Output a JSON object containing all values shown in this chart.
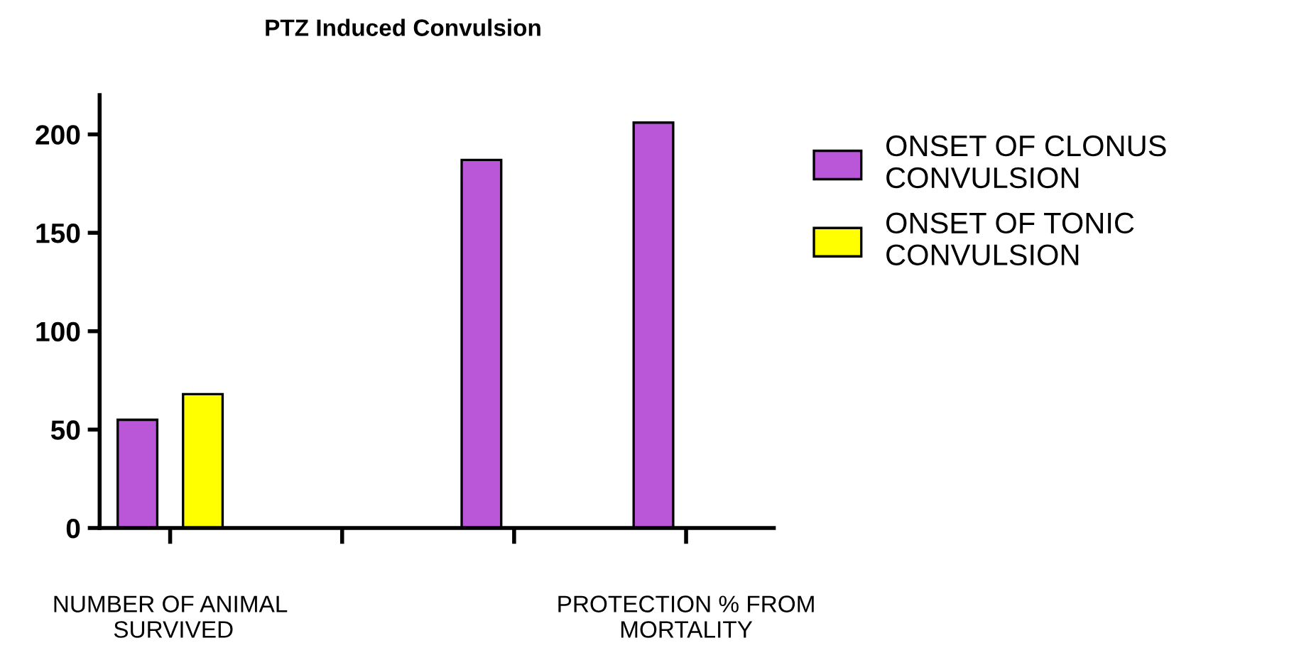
{
  "chart_data": {
    "type": "bar",
    "title": "PTZ Induced Convulsion",
    "categories": [
      "NUMBER OF ANIMAL\n SURVIVED",
      null,
      null,
      "PROTECTION % FROM\nMORTALITY"
    ],
    "series": [
      {
        "name": "ONSET OF CLONUS\nCONVULSION",
        "color": "#b957d8",
        "values": [
          55,
          null,
          187,
          206
        ]
      },
      {
        "name": "ONSET OF TONIC\nCONVULSION",
        "color": "#ffff00",
        "values": [
          68,
          null,
          null,
          null
        ]
      }
    ],
    "ylim": [
      0,
      220
    ],
    "yticks": [
      0,
      50,
      100,
      150,
      200
    ],
    "grid": false,
    "legend": "right"
  }
}
